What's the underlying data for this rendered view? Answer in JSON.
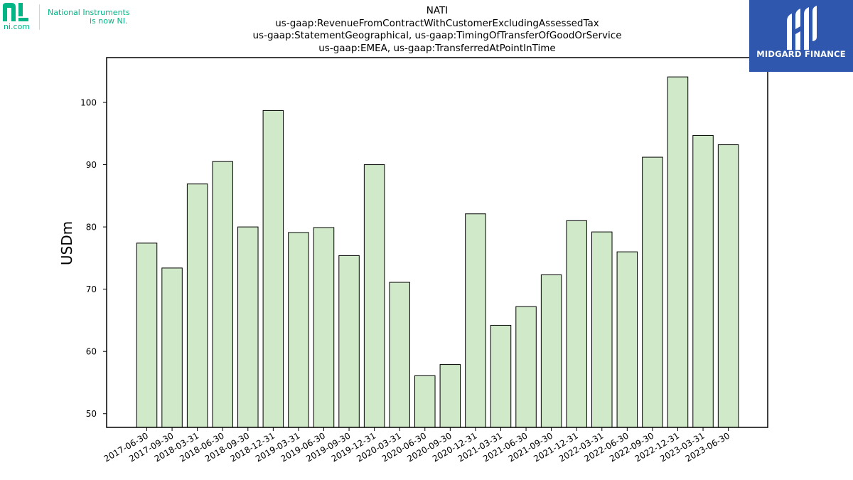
{
  "logos": {
    "left": {
      "name": "ni.com",
      "tagline_1": "National Instruments",
      "tagline_2": "is now NI."
    },
    "right": {
      "name": "MIDGARD FINANCE"
    }
  },
  "chart_data": {
    "type": "bar",
    "title_lines": [
      "NATI",
      "us-gaap:RevenueFromContractWithCustomerExcludingAssessedTax",
      "us-gaap:StatementGeographical, us-gaap:TimingOfTransferOfGoodOrService",
      "us-gaap:EMEA, us-gaap:TransferredAtPointInTime"
    ],
    "xlabel": "",
    "ylabel": "USDm",
    "categories": [
      "2017-06-30",
      "2017-09-30",
      "2018-03-31",
      "2018-06-30",
      "2018-09-30",
      "2018-12-31",
      "2019-03-31",
      "2019-06-30",
      "2019-09-30",
      "2019-12-31",
      "2020-03-31",
      "2020-06-30",
      "2020-09-30",
      "2020-12-31",
      "2021-03-31",
      "2021-06-30",
      "2021-09-30",
      "2021-12-31",
      "2022-03-31",
      "2022-06-30",
      "2022-09-30",
      "2022-12-31",
      "2023-03-31",
      "2023-06-30"
    ],
    "values": [
      77.4,
      73.4,
      86.9,
      90.5,
      80.0,
      98.7,
      79.1,
      79.9,
      75.4,
      90.0,
      71.1,
      56.1,
      57.9,
      82.1,
      64.2,
      67.2,
      72.3,
      81.0,
      79.2,
      76.0,
      91.2,
      104.1,
      94.7,
      93.2
    ],
    "ylim": [
      47.8,
      107.2
    ],
    "yticks": [
      50,
      60,
      70,
      80,
      90,
      100
    ],
    "bar_color": "#d0eac9",
    "edge_color": "#000000",
    "grid": false
  }
}
